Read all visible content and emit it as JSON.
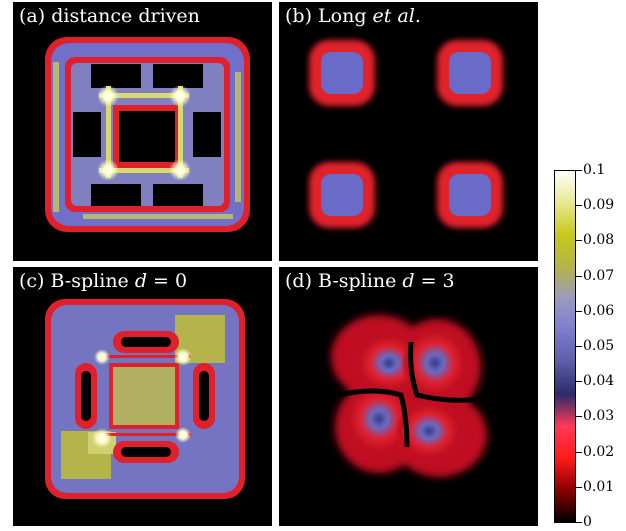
{
  "panels": [
    {
      "id": "a",
      "label_prefix": "(a) ",
      "label_main": "distance driven",
      "label_italic": "",
      "label_suffix": ""
    },
    {
      "id": "b",
      "label_prefix": "(b) ",
      "label_main": "Long ",
      "label_italic": "et al.",
      "label_suffix": ""
    },
    {
      "id": "c",
      "label_prefix": "(c) ",
      "label_main": "B-spline ",
      "label_italic": "d",
      "label_suffix": " = 0"
    },
    {
      "id": "d",
      "label_prefix": "(d) ",
      "label_main": "B-spline ",
      "label_italic": "d",
      "label_suffix": " = 3"
    }
  ],
  "colorbar": {
    "ticks": [
      "0.1",
      "0.09",
      "0.08",
      "0.07",
      "0.06",
      "0.05",
      "0.04",
      "0.03",
      "0.02",
      "0.01",
      "0"
    ],
    "colormap": [
      "#000000",
      "#8a0000",
      "#ff1a1a",
      "#ff3a5a",
      "#2a2a6a",
      "#5c5ca8",
      "#7c7cd0",
      "#9a9ac0",
      "#b4b44a",
      "#c8c81a",
      "#e8e890",
      "#ffffff"
    ]
  },
  "colors": {
    "background": "#000000",
    "red": "#e0202a",
    "blue": "#6a6ac8",
    "yellow": "#d8d870",
    "white": "#ffffff"
  }
}
